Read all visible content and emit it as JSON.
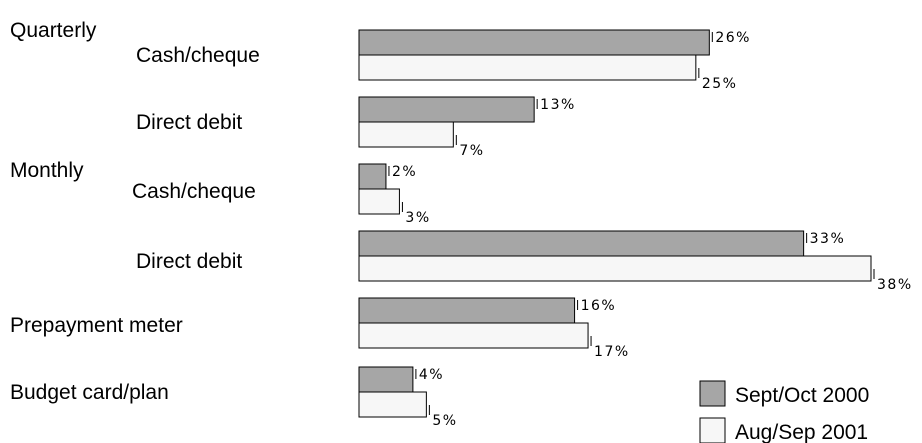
{
  "chart_data": {
    "type": "bar",
    "orientation": "horizontal",
    "groups": [
      {
        "label": "Quarterly",
        "rows": [
          0,
          1
        ]
      },
      {
        "label": "Monthly",
        "rows": [
          2,
          3
        ]
      }
    ],
    "categories": [
      "Cash/cheque",
      "Direct debit",
      "Cash/cheque",
      "Direct debit",
      "Prepayment meter",
      "Budget card/plan"
    ],
    "series": [
      {
        "name": "Sept/Oct 2000",
        "values": [
          26,
          13,
          2,
          33,
          16,
          4
        ],
        "labels": [
          "26%",
          "13%",
          "2%",
          "33%",
          "16%",
          "4%"
        ],
        "color": "#a6a6a6"
      },
      {
        "name": "Aug/Sep 2001",
        "values": [
          25,
          7,
          3,
          38,
          17,
          5
        ],
        "labels": [
          "25%",
          "7%",
          "3%",
          "38%",
          "17%",
          "5%"
        ],
        "color": "#f7f7f7"
      }
    ],
    "unit": "%",
    "xlim": [
      0,
      38
    ],
    "grid": false,
    "legend_position": "bottom-right"
  }
}
